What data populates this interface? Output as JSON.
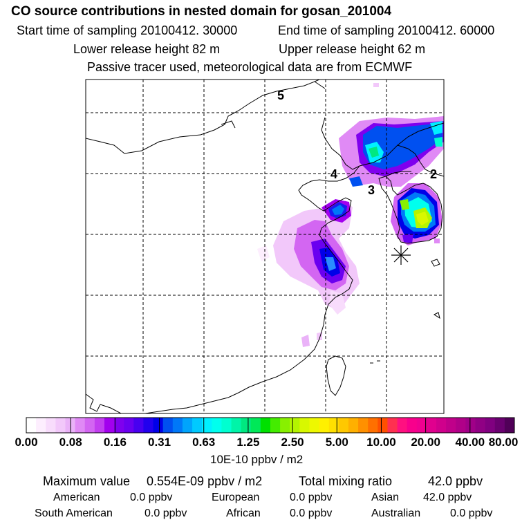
{
  "header": {
    "title": "CO  source contributions in nested domain for gosan_201004",
    "start_time": "Start time of sampling 20100412. 30000",
    "end_time": "End time of sampling 20100412. 60000",
    "lower_release": "Lower release height   82 m",
    "upper_release": "Upper release height   62 m",
    "tracer_note": "Passive tracer used, meteorological data are from ECMWF"
  },
  "map": {
    "region_labels": [
      "5",
      "4",
      "3",
      "2"
    ],
    "station_marker": "receptor-star-icon"
  },
  "colorbar": {
    "colors": [
      "#ffffff",
      "#fdeefe",
      "#f8dcfc",
      "#f2c8fa",
      "#eab2f8",
      "#e08af5",
      "#d366f2",
      "#c23ef0",
      "#a200ee",
      "#7f00ee",
      "#6a00f0",
      "#4800f0",
      "#2200ee",
      "#0000e8",
      "#0050f0",
      "#0078f8",
      "#00a4fc",
      "#00caff",
      "#00f0ff",
      "#00ffee",
      "#00ffd0",
      "#00f4a8",
      "#00e880",
      "#00e858",
      "#00e000",
      "#44ec00",
      "#88f000",
      "#b4f400",
      "#d8f800",
      "#eef800",
      "#fff000",
      "#ffe000",
      "#ffc800",
      "#ffb000",
      "#ff9000",
      "#ff7000",
      "#ff5000",
      "#ff3050",
      "#ff1080",
      "#f8008c",
      "#f00090",
      "#e0008e",
      "#d0008c",
      "#c0008a",
      "#b00088",
      "#a00088",
      "#900084",
      "#800080",
      "#6a0070",
      "#500058"
    ],
    "tick_labels": [
      "0.00",
      "0.08",
      "0.16",
      "0.31",
      "0.63",
      "1.25",
      "2.50",
      "5.00",
      "10.00",
      "20.00",
      "40.00",
      "80.00"
    ],
    "unit": "10E-10 ppbv / m2"
  },
  "summary": {
    "max_label": "Maximum value",
    "max_value": "0.554E-09 ppbv / m2",
    "total_label": "Total mixing ratio",
    "total_value": "42.0 ppbv"
  },
  "sources": [
    {
      "name": "American",
      "value": "0.0 ppbv"
    },
    {
      "name": "European",
      "value": "0.0 ppbv"
    },
    {
      "name": "Asian",
      "value": "42.0 ppbv"
    },
    {
      "name": "South American",
      "value": "0.0 ppbv"
    },
    {
      "name": "African",
      "value": "0.0 ppbv"
    },
    {
      "name": "Australian",
      "value": "0.0 ppbv"
    }
  ]
}
